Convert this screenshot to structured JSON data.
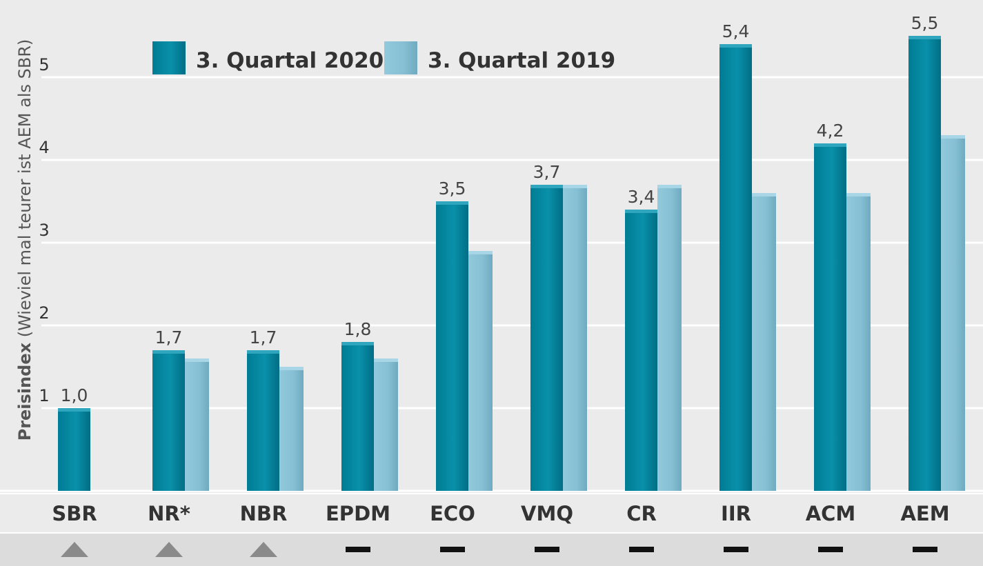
{
  "chart_data": {
    "type": "bar",
    "ylabel_bold": "Preisindex",
    "ylabel_rest": " (Wieviel  mal teurer ist AEM als SBR)",
    "ylim": [
      0,
      5.85
    ],
    "yticks": [
      1,
      2,
      3,
      4,
      5
    ],
    "categories": [
      "SBR",
      "NR*",
      "NBR",
      "EPDM",
      "ECO",
      "VMQ",
      "CR",
      "IIR",
      "ACM",
      "AEM"
    ],
    "series": [
      {
        "name": "3. Quartal 2020",
        "color": "#00849E",
        "values": [
          1.0,
          1.7,
          1.7,
          1.8,
          3.5,
          3.7,
          3.4,
          5.4,
          4.2,
          5.5
        ],
        "labels": [
          "1,0",
          "1,7",
          "1,7",
          "1,8",
          "3,5",
          "3,7",
          "3,4",
          "5,4",
          "4,2",
          "5,5"
        ]
      },
      {
        "name": "3. Quartal 2019",
        "color": "#8CC4D8",
        "values": [
          null,
          1.6,
          1.5,
          1.6,
          2.9,
          3.7,
          3.7,
          3.6,
          3.6,
          4.3
        ]
      }
    ],
    "trends": [
      "up",
      "up",
      "up",
      "flat",
      "flat",
      "flat",
      "flat",
      "flat",
      "flat",
      "flat"
    ]
  }
}
